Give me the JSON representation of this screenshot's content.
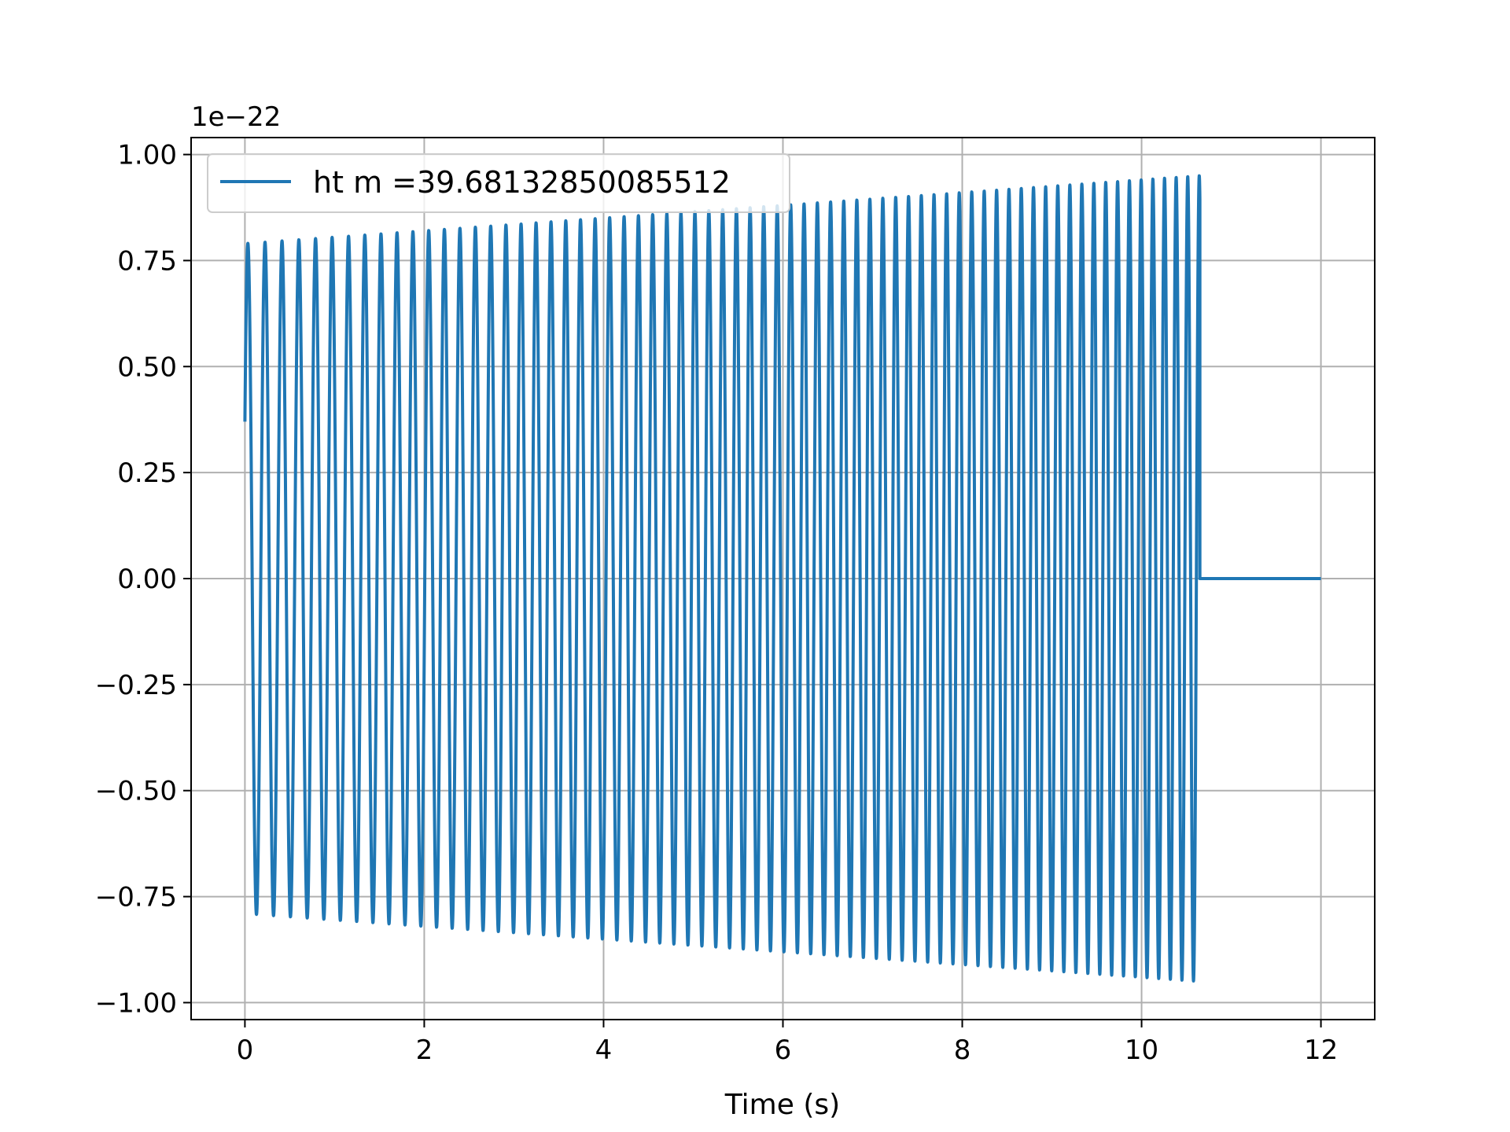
{
  "chart_data": {
    "type": "line",
    "title": "",
    "xlabel": "Time (s)",
    "ylabel": "",
    "y_offset_label": "1e−22",
    "xlim": [
      -0.6,
      12.6
    ],
    "ylim": [
      -1.04,
      1.04
    ],
    "x_ticks": [
      0,
      2,
      4,
      6,
      8,
      10,
      12
    ],
    "x_tick_labels": [
      "0",
      "2",
      "4",
      "6",
      "8",
      "10",
      "12"
    ],
    "y_ticks": [
      -1.0,
      -0.75,
      -0.5,
      -0.25,
      0.0,
      0.25,
      0.5,
      0.75,
      1.0
    ],
    "y_tick_labels": [
      "−1.00",
      "−0.75",
      "−0.50",
      "−0.25",
      "0.00",
      "0.25",
      "0.50",
      "0.75",
      "1.00"
    ],
    "grid": true,
    "legend_position": "top-left",
    "series": [
      {
        "name": "ht m =39.68132850085512",
        "color": "#1f77b4",
        "description_points": {
          "t_start": 0.0,
          "t_merge": 10.65,
          "t_end": 12.0,
          "amp_start": 0.79,
          "amp_end": 0.95,
          "freq_start": 5.2,
          "freq_end": 7.8,
          "start_value": 0.37
        }
      }
    ]
  }
}
